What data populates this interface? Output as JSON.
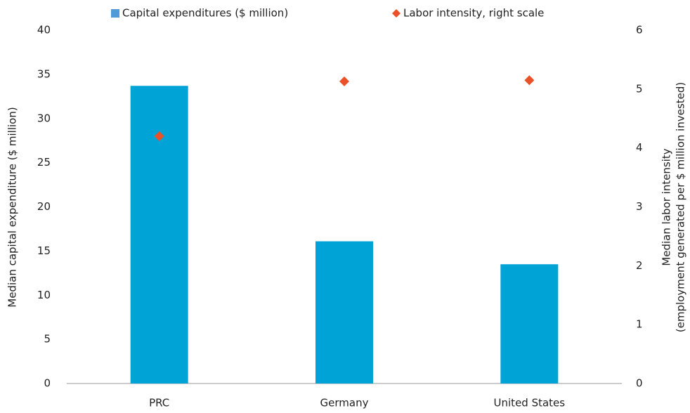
{
  "chart_data": {
    "type": "bar",
    "categories": [
      "PRC",
      "Germany",
      "United States"
    ],
    "series": [
      {
        "name": "Capital expenditures ($ million)",
        "type": "bar",
        "color": "#00a3d6",
        "values": [
          33.7,
          16.1,
          13.5
        ]
      },
      {
        "name": "Labor intensity, right scale",
        "type": "scatter",
        "axis": "y2",
        "color": "#ea5129",
        "values": [
          4.2,
          5.13,
          5.15
        ]
      }
    ],
    "ylabel": "Median capital expenditure ($ million)",
    "y2label": [
      "Median labor intensity",
      "(employment generated per $ million invested)"
    ],
    "ylim": [
      0,
      40
    ],
    "yticks": [
      0,
      5,
      10,
      15,
      20,
      25,
      30,
      35,
      40
    ],
    "y2lim": [
      0,
      6
    ],
    "y2ticks": [
      0,
      1,
      2,
      3,
      4,
      5,
      6
    ],
    "grid": false,
    "legend": "top"
  }
}
